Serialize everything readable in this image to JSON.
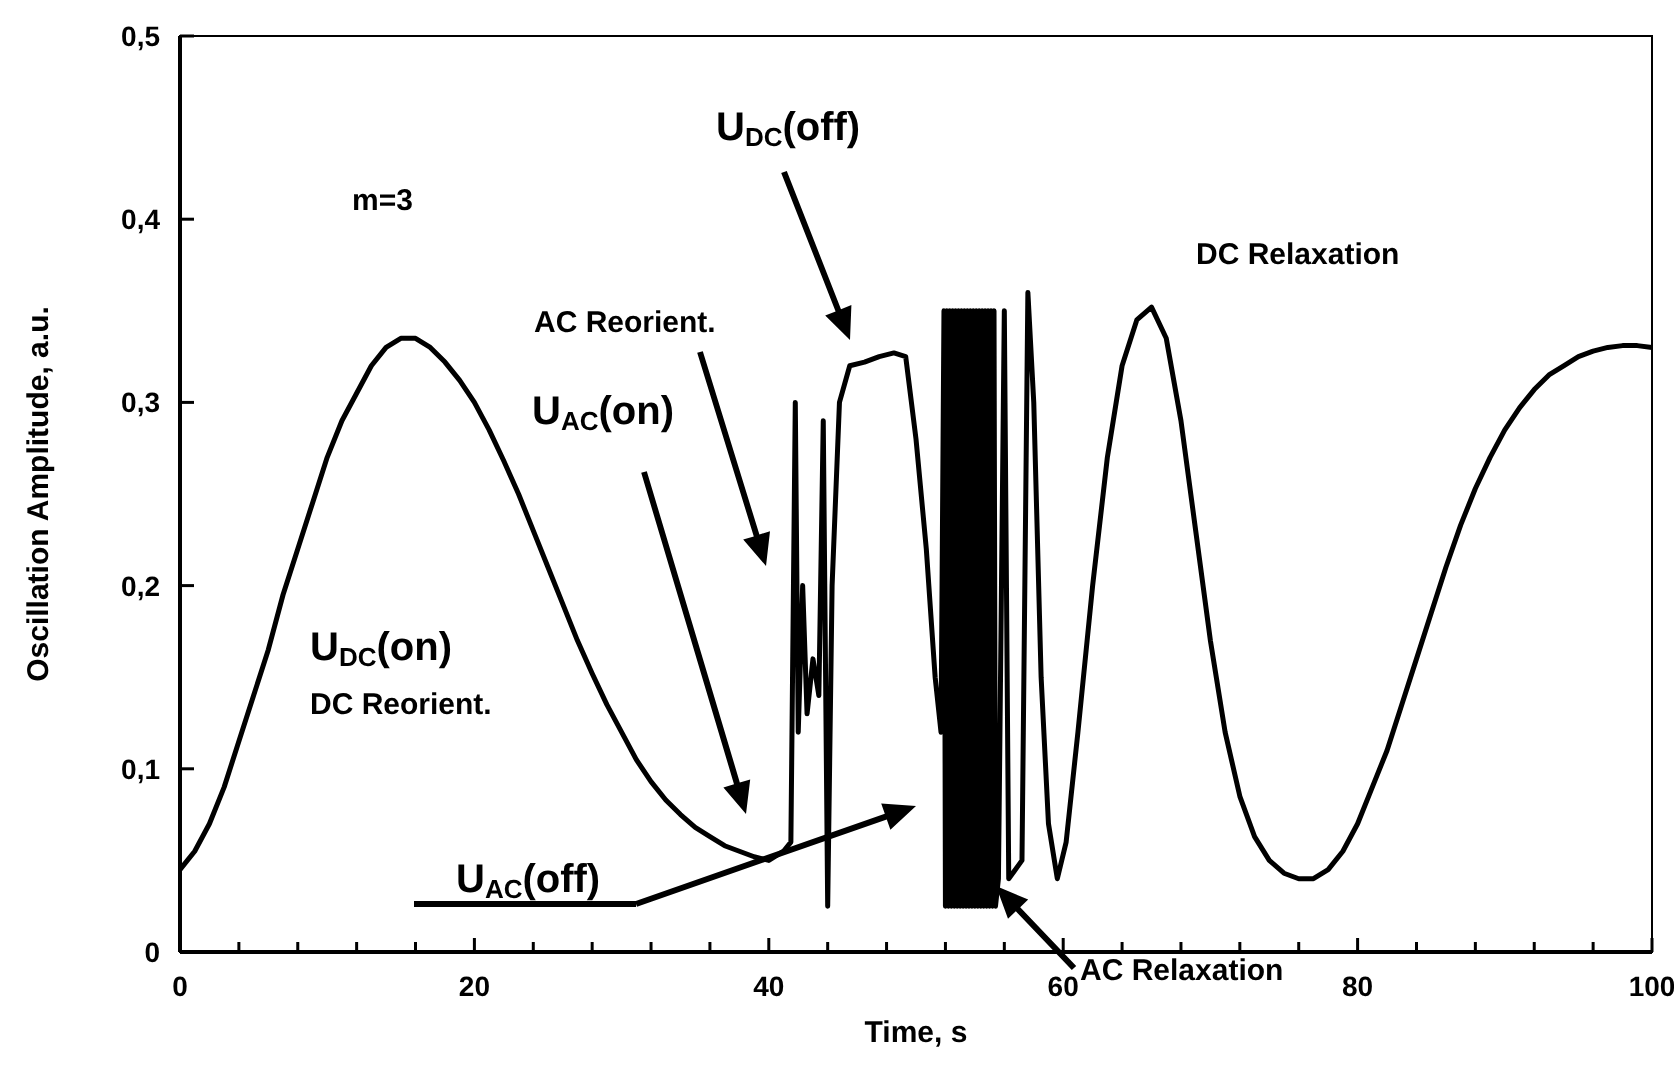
{
  "chart_data": {
    "type": "line",
    "xlabel": "Time, s",
    "ylabel": "Oscillation Amplitude, a.u.",
    "xlim": [
      0,
      100
    ],
    "ylim": [
      0,
      0.5
    ],
    "xticks": [
      0,
      {
        "value": 4,
        "label": null
      },
      {
        "value": 8,
        "label": null
      },
      {
        "value": 12,
        "label": null
      },
      {
        "value": 16,
        "label": null
      },
      20,
      {
        "value": 24,
        "label": null
      },
      {
        "value": 28,
        "label": null
      },
      {
        "value": 32,
        "label": null
      },
      {
        "value": 36,
        "label": null
      },
      40,
      {
        "value": 44,
        "label": null
      },
      {
        "value": 48,
        "label": null
      },
      {
        "value": 52,
        "label": null
      },
      {
        "value": 56,
        "label": null
      },
      60,
      {
        "value": 64,
        "label": null
      },
      {
        "value": 68,
        "label": null
      },
      {
        "value": 72,
        "label": null
      },
      {
        "value": 76,
        "label": null
      },
      80,
      {
        "value": 84,
        "label": null
      },
      {
        "value": 88,
        "label": null
      },
      {
        "value": 92,
        "label": null
      },
      {
        "value": 96,
        "label": null
      },
      100
    ],
    "yticks": [
      0,
      {
        "value": 0.1,
        "label": "0,1"
      },
      {
        "value": 0.2,
        "label": "0,2"
      },
      {
        "value": 0.3,
        "label": "0,3"
      },
      {
        "value": 0.4,
        "label": "0,4"
      },
      {
        "value": 0.5,
        "label": "0,5"
      }
    ],
    "grid": false,
    "marker": "none",
    "line_style": "solid",
    "series": [
      {
        "color": "#000000",
        "x": [
          0,
          1,
          2,
          3,
          4,
          5,
          6,
          7,
          8,
          9,
          10,
          11,
          12,
          13,
          14,
          15,
          16,
          17,
          18,
          19,
          20,
          21,
          22,
          23,
          24,
          25,
          26,
          27,
          28,
          29,
          30,
          31,
          32,
          33,
          34,
          35,
          36,
          37,
          38,
          39,
          40,
          41,
          41.5,
          41.8,
          42,
          42.3,
          42.6,
          43,
          43.4,
          43.7,
          44,
          44.3,
          44.8,
          45.5,
          46.5,
          47.5,
          48.5,
          49.3,
          50,
          50.7,
          51.3,
          51.7,
          51.9,
          52.0,
          52.1,
          52.2,
          52.3,
          52.4,
          52.5,
          52.6,
          52.7,
          52.8,
          52.9,
          53.0,
          53.1,
          53.2,
          53.3,
          53.4,
          53.5,
          53.6,
          53.7,
          53.8,
          53.9,
          54.0,
          54.1,
          54.2,
          54.3,
          54.4,
          54.5,
          54.6,
          54.7,
          54.8,
          54.9,
          55.0,
          55.1,
          55.2,
          55.3,
          55.4,
          55.6,
          56,
          56.3,
          57.2,
          57.6,
          58,
          58.5,
          59,
          59.6,
          60.2,
          61,
          62,
          63,
          64,
          65,
          66,
          67,
          68,
          69,
          70,
          71,
          72,
          73,
          74,
          75,
          76,
          77,
          78,
          79,
          80,
          81,
          82,
          83,
          84,
          85,
          86,
          87,
          88,
          89,
          90,
          91,
          92,
          93,
          94,
          95,
          96,
          97,
          98,
          99,
          100
        ],
        "values": [
          0.045,
          0.055,
          0.07,
          0.09,
          0.115,
          0.14,
          0.165,
          0.195,
          0.22,
          0.245,
          0.27,
          0.29,
          0.305,
          0.32,
          0.33,
          0.335,
          0.335,
          0.33,
          0.322,
          0.312,
          0.3,
          0.285,
          0.268,
          0.25,
          0.23,
          0.21,
          0.19,
          0.17,
          0.152,
          0.135,
          0.12,
          0.105,
          0.093,
          0.083,
          0.075,
          0.068,
          0.063,
          0.058,
          0.055,
          0.052,
          0.05,
          0.055,
          0.06,
          0.3,
          0.12,
          0.2,
          0.13,
          0.16,
          0.14,
          0.29,
          0.025,
          0.2,
          0.3,
          0.32,
          0.322,
          0.325,
          0.327,
          0.325,
          0.28,
          0.22,
          0.15,
          0.12,
          0.35,
          0.025,
          0.35,
          0.025,
          0.35,
          0.025,
          0.35,
          0.025,
          0.35,
          0.025,
          0.35,
          0.025,
          0.35,
          0.025,
          0.35,
          0.025,
          0.35,
          0.025,
          0.35,
          0.025,
          0.35,
          0.025,
          0.35,
          0.025,
          0.35,
          0.025,
          0.35,
          0.025,
          0.35,
          0.025,
          0.35,
          0.025,
          0.35,
          0.025,
          0.35,
          0.025,
          0.04,
          0.35,
          0.04,
          0.05,
          0.36,
          0.3,
          0.15,
          0.07,
          0.04,
          0.06,
          0.12,
          0.2,
          0.27,
          0.32,
          0.345,
          0.352,
          0.335,
          0.29,
          0.23,
          0.17,
          0.12,
          0.085,
          0.063,
          0.05,
          0.043,
          0.04,
          0.04,
          0.045,
          0.055,
          0.07,
          0.09,
          0.11,
          0.135,
          0.16,
          0.185,
          0.21,
          0.233,
          0.253,
          0.27,
          0.285,
          0.297,
          0.307,
          0.315,
          0.32,
          0.325,
          0.328,
          0.33,
          0.331,
          0.331,
          0.33
        ]
      }
    ],
    "annotations": [
      "m=3",
      "U$_{DC}$(off)",
      "AC Reorient.",
      "U$_{AC}$(on)",
      "U$_{DC}$(on)",
      "DC Reorient.",
      "U$_{AC}$(off)",
      "DC Relaxation",
      "AC Relaxation"
    ]
  }
}
